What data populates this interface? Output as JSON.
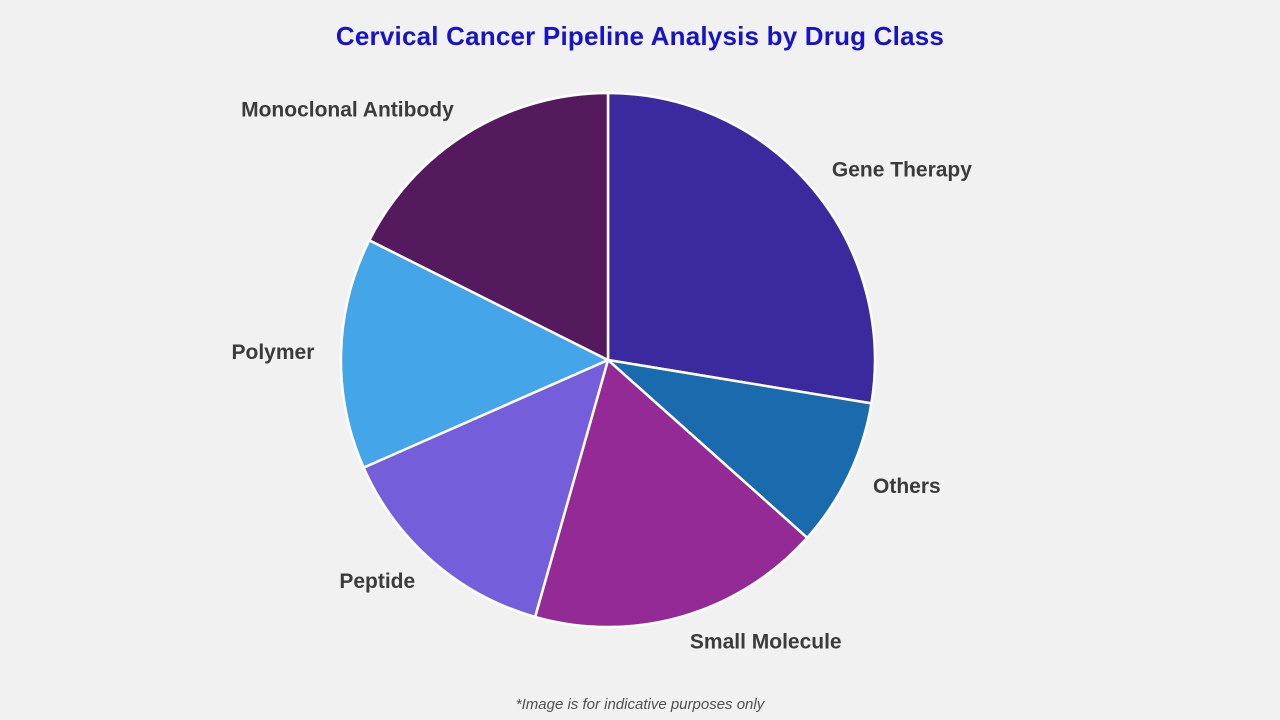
{
  "page": {
    "background_color": "#f1f1f1"
  },
  "header": {
    "title": "Cervical Cancer Pipeline Analysis by Drug Class",
    "title_color": "#1713ca"
  },
  "footer": {
    "note": "*Image is for indicative purposes only",
    "note_color": "#4f4f4f"
  },
  "chart_data": {
    "type": "pie",
    "title": "Cervical Cancer Pipeline Analysis by Drug Class",
    "start_angle": "12 o'clock",
    "direction": "clockwise",
    "legend_position": "none",
    "label_placement": "outside",
    "label_color": "#3b3b3b",
    "divider_color": "#ffffff",
    "values_note": "percentages estimated from slice angles; no numeric labels are shown in the image",
    "slices": [
      {
        "label": "Gene Therapy",
        "value_pct": 27.6,
        "color": "#3b2a9d"
      },
      {
        "label": "Others",
        "value_pct": 9.0,
        "color": "#1a6bad"
      },
      {
        "label": "Small Molecule",
        "value_pct": 17.8,
        "color": "#942a96"
      },
      {
        "label": "Peptide",
        "value_pct": 14.0,
        "color": "#745ed9"
      },
      {
        "label": "Polymer",
        "value_pct": 14.0,
        "color": "#45a5e9"
      },
      {
        "label": "Monoclonal Antibody",
        "value_pct": 17.6,
        "color": "#551a5e"
      }
    ],
    "annotations": [
      "*Image is for indicative purposes only"
    ]
  }
}
